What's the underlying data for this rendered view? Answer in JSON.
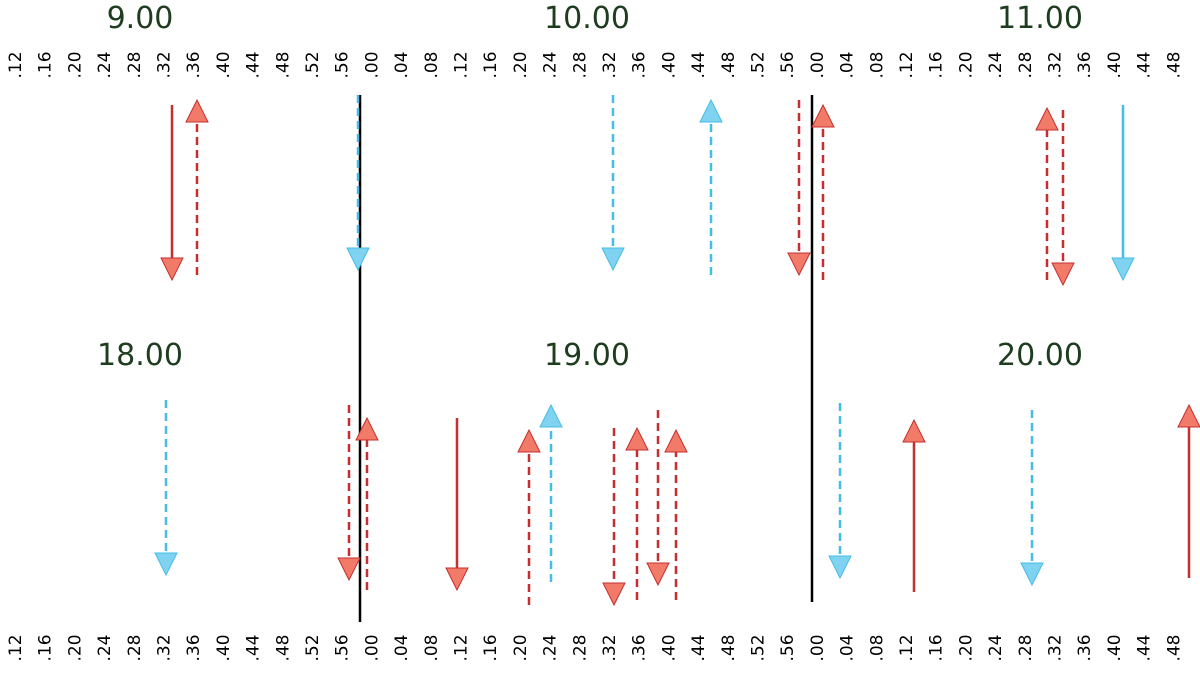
{
  "top_hours": [
    "9.00",
    "10.00",
    "11.00"
  ],
  "bottom_hours": [
    "18.00",
    "19.00",
    "20.00"
  ],
  "top_ticks": [
    ".12",
    ".16",
    ".20",
    ".24",
    ".28",
    ".32",
    ".36",
    ".40",
    ".44",
    ".48",
    ".52",
    ".56",
    ".00",
    ".04",
    ".08",
    ".12",
    ".16",
    ".20",
    ".24",
    ".28",
    ".32",
    ".36",
    ".40",
    ".44",
    ".48",
    ".52",
    ".56",
    ".00",
    ".04",
    ".08",
    ".12",
    ".16",
    ".20",
    ".24",
    ".28",
    ".32",
    ".36",
    ".40",
    ".44",
    ".48"
  ],
  "bottom_ticks": [
    ".12",
    ".16",
    ".20",
    ".24",
    ".28",
    ".32",
    ".36",
    ".40",
    ".44",
    ".48",
    ".52",
    ".56",
    ".00",
    ".04",
    ".08",
    ".12",
    ".16",
    ".20",
    ".24",
    ".28",
    ".32",
    ".36",
    ".40",
    ".44",
    ".48",
    ".52",
    ".56",
    ".00",
    ".04",
    ".08",
    ".12",
    ".16",
    ".20",
    ".24",
    ".28",
    ".32",
    ".36",
    ".40",
    ".44",
    ".48"
  ]
}
